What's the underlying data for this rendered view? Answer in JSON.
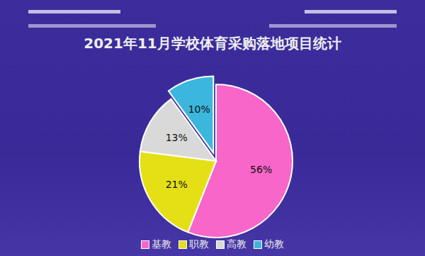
{
  "chart_data": {
    "type": "pie",
    "title": "2021年11月学校体育采购落地项目统计",
    "categories": [
      "基教",
      "职教",
      "高教",
      "幼教"
    ],
    "values": [
      56,
      21,
      13,
      10
    ],
    "value_labels": [
      "56%",
      "21%",
      "13%",
      "10%"
    ],
    "colors": [
      "#f766c8",
      "#e4e015",
      "#d9d9d9",
      "#3bb6dc"
    ],
    "data_labels": true,
    "legend": "bottom"
  }
}
